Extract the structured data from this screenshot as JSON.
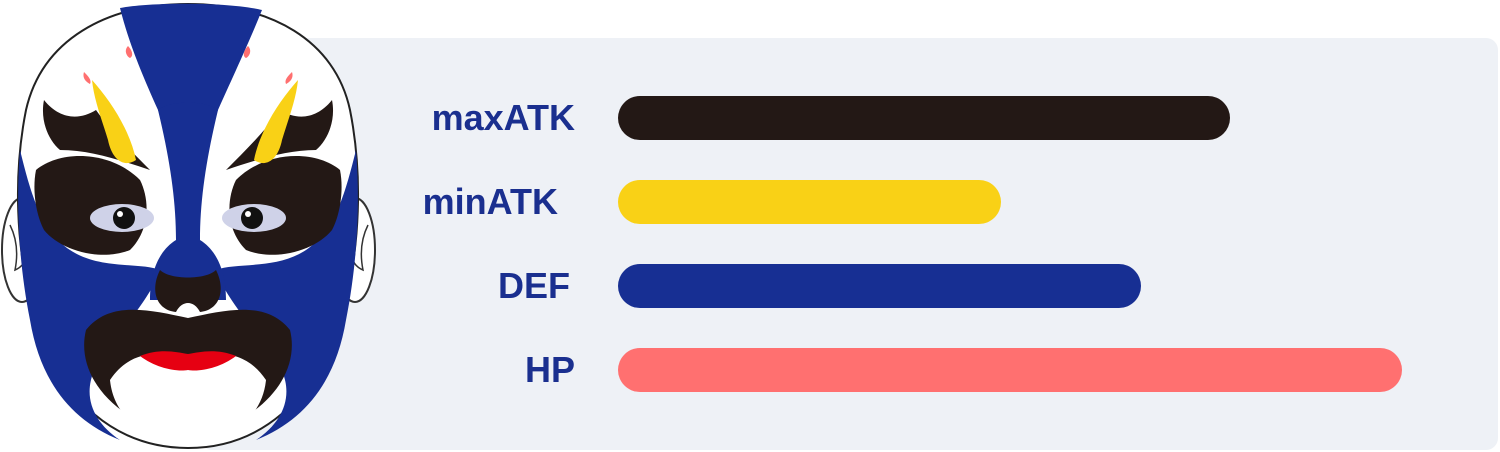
{
  "colors": {
    "panel_background": "#eef1f6",
    "label_text": "#1a2f8f"
  },
  "mask": {
    "icon": "peking-opera-mask-icon"
  },
  "stats": [
    {
      "label": "maxATK",
      "fill": 0.72,
      "color": "#231815"
    },
    {
      "label": "minATK",
      "fill": 0.45,
      "color": "#f9d116"
    },
    {
      "label": "DEF",
      "fill": 0.615,
      "color": "#172f93"
    },
    {
      "label": "HP",
      "fill": 0.922,
      "color": "#ff7070"
    }
  ]
}
